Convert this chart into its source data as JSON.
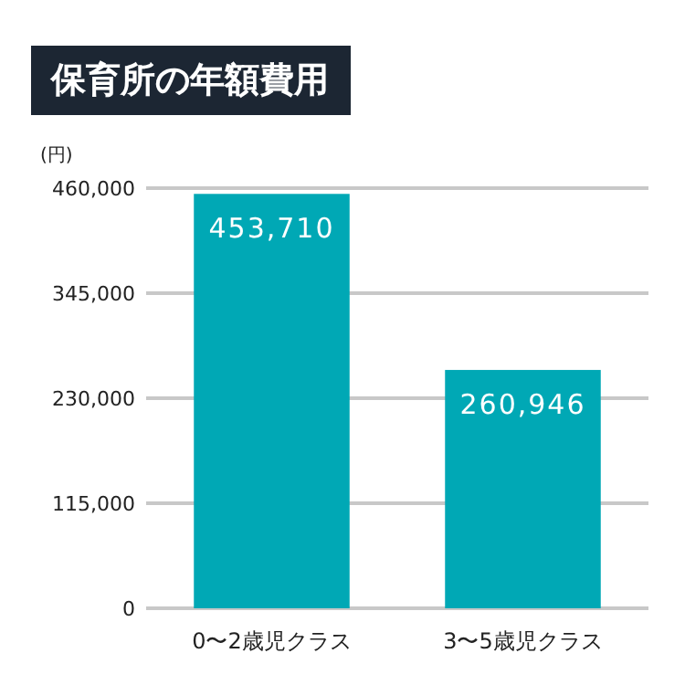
{
  "chart_data": {
    "type": "bar",
    "title": "保育所の年額費用",
    "ylabel": "(円)",
    "categories": [
      "0〜2歳児クラス",
      "3〜5歳児クラス"
    ],
    "values": [
      453710,
      260946
    ],
    "value_labels": [
      "453,710",
      "260,946"
    ],
    "color": "#00a8b5",
    "ylim": [
      0,
      460000
    ],
    "yticks": [
      {
        "value": 0,
        "label": "0"
      },
      {
        "value": 115000,
        "label": "115,000"
      },
      {
        "value": 230000,
        "label": "230,000"
      },
      {
        "value": 345000,
        "label": "345,000"
      },
      {
        "value": 460000,
        "label": "460,000"
      }
    ],
    "grid": "y"
  }
}
